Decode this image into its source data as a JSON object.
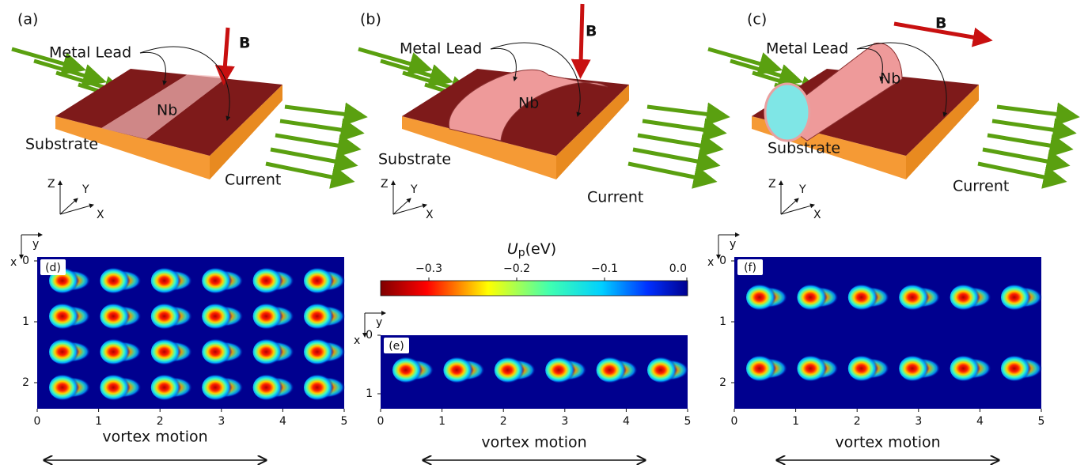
{
  "panels_3d": [
    {
      "label": "(a)",
      "field": "B",
      "lead": "Metal Lead",
      "film": "Nb",
      "substrate": "Substrate",
      "current": "Current",
      "axes": [
        "Z",
        "Y",
        "X"
      ]
    },
    {
      "label": "(b)",
      "field": "B",
      "lead": "Metal Lead",
      "film": "Nb",
      "substrate": "Substrate",
      "current": "Current",
      "axes": [
        "Z",
        "Y",
        "X"
      ]
    },
    {
      "label": "(c)",
      "field": "B",
      "lead": "Metal Lead",
      "film": "Nb",
      "substrate": "Substrate",
      "current": "Current",
      "axes": [
        "Z",
        "Y",
        "X"
      ]
    }
  ],
  "maps": [
    {
      "label": "(d)",
      "axis_x": "x",
      "axis_y": "y",
      "xticks": [
        "0",
        "1",
        "2"
      ],
      "yticks": [
        "0",
        "1",
        "2",
        "3",
        "4",
        "5"
      ],
      "caption": "vortex motion"
    },
    {
      "label": "(e)",
      "axis_x": "x",
      "axis_y": "y",
      "xticks": [
        "0",
        "1"
      ],
      "yticks": [
        "0",
        "1",
        "2",
        "3",
        "4",
        "5"
      ],
      "caption": "vortex motion"
    },
    {
      "label": "(f)",
      "axis_x": "x",
      "axis_y": "y",
      "xticks": [
        "0",
        "1",
        "2"
      ],
      "yticks": [
        "0",
        "1",
        "2",
        "3",
        "4",
        "5"
      ],
      "caption": "vortex motion"
    }
  ],
  "colorbar": {
    "symbol": "U",
    "subscript": "p",
    "unit": "(eV)",
    "ticks": [
      "−0.3",
      "−0.2",
      "−0.1",
      "0.0"
    ]
  }
}
